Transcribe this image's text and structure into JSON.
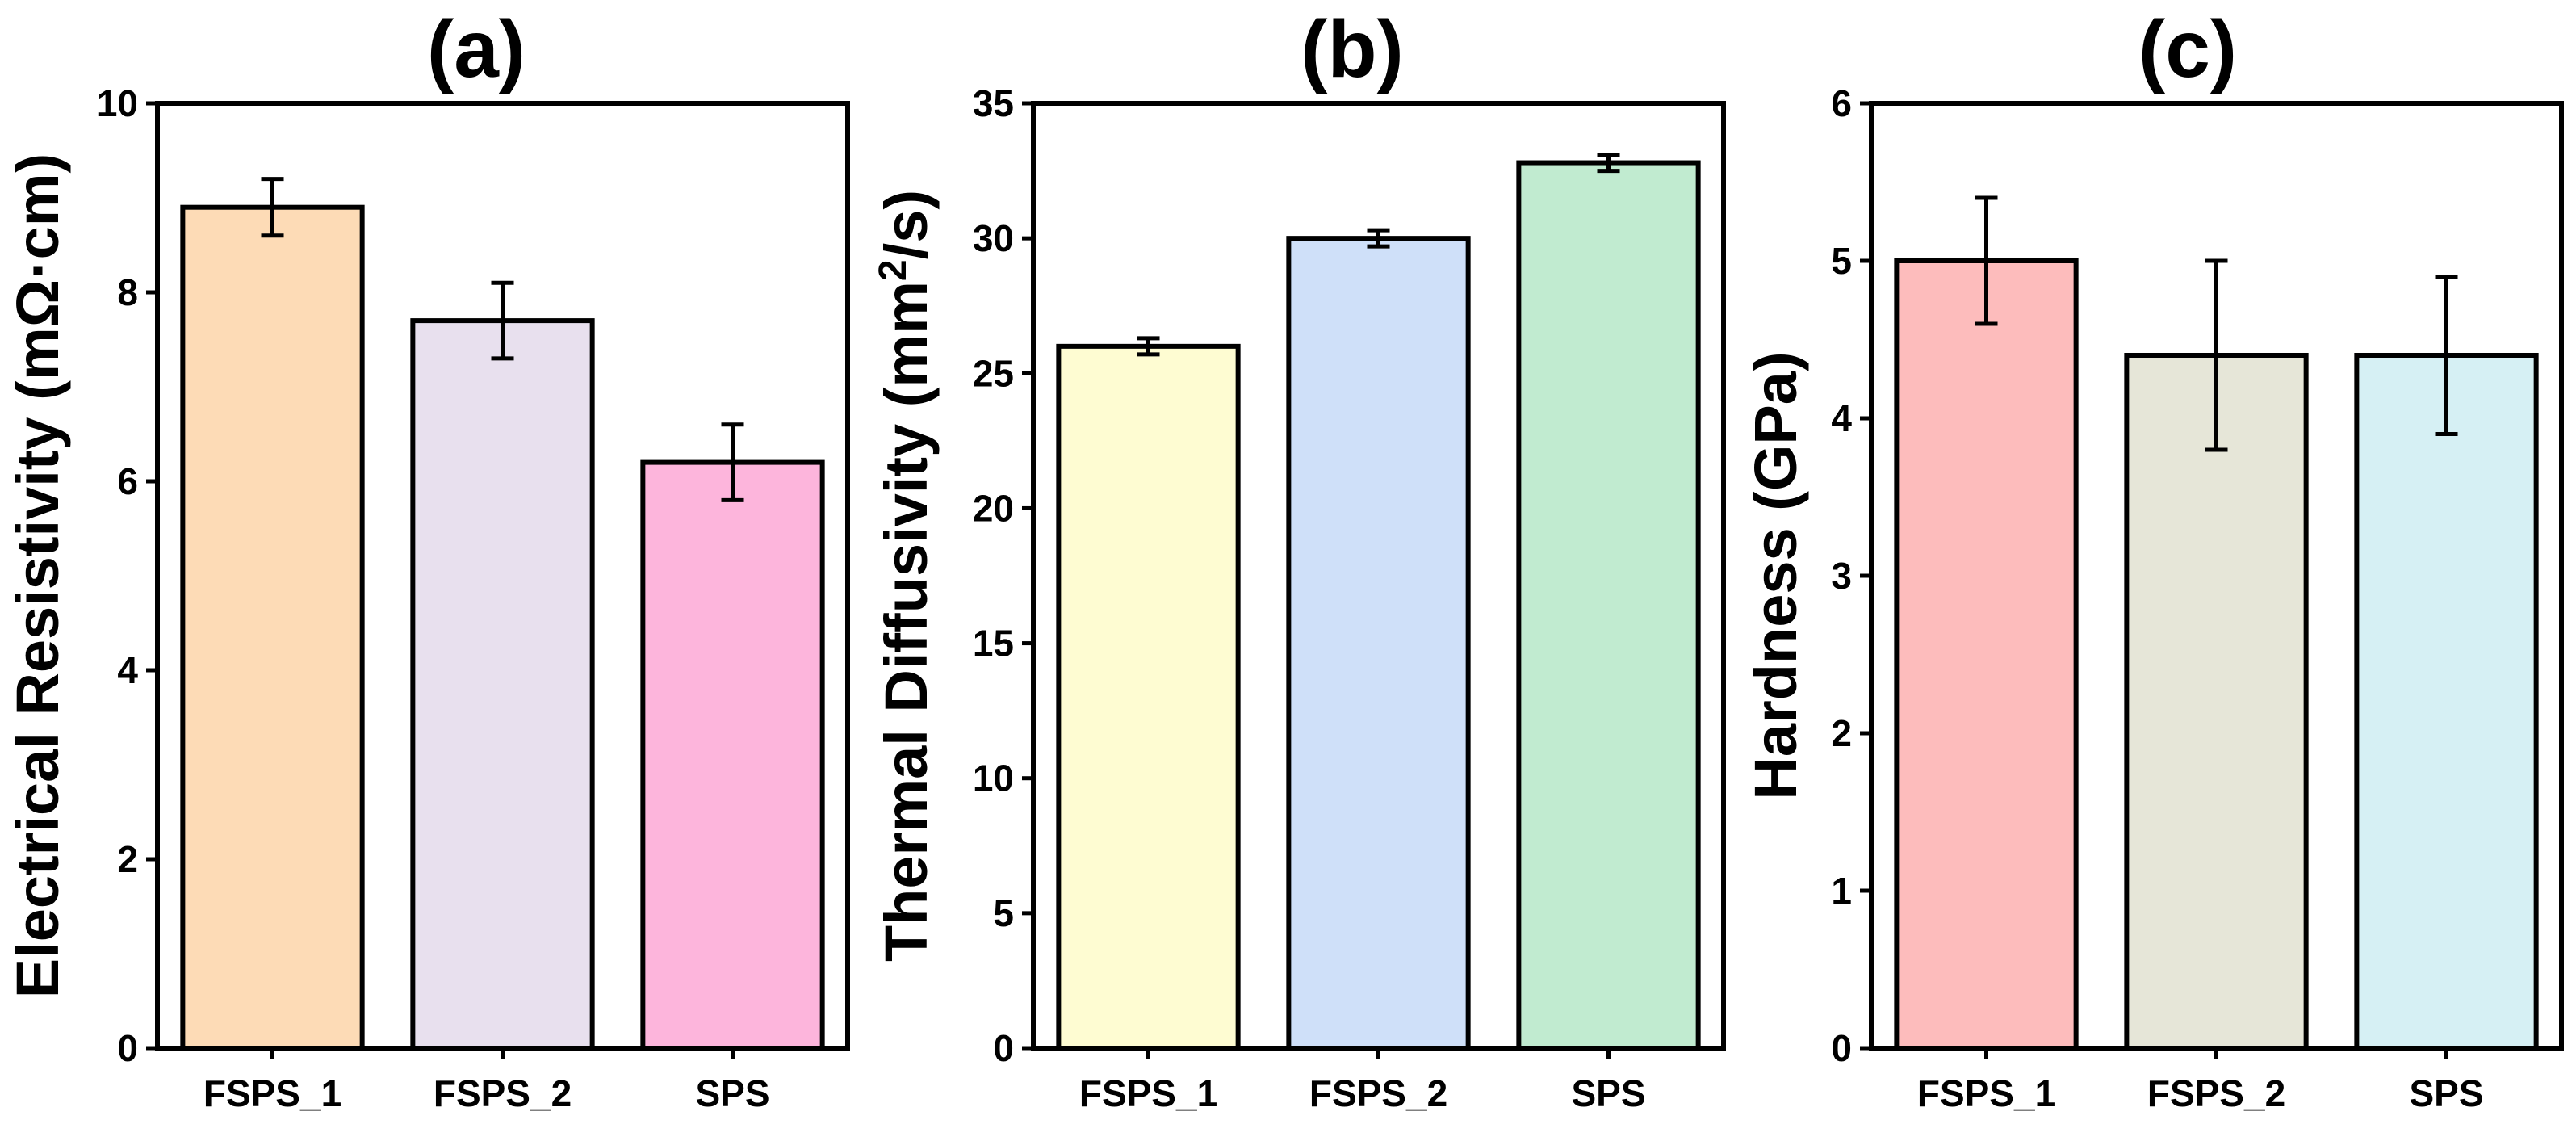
{
  "chart_data": [
    {
      "type": "bar",
      "title": "(a)",
      "xlabel": "",
      "ylabel": "Electrical Resistivity (mΩ·cm)",
      "ylabel_parts": [
        {
          "text": "Electrical Resistivity (mΩ·cm)",
          "sup": false
        }
      ],
      "ylim": [
        0,
        10
      ],
      "yticks": [
        0,
        2,
        4,
        6,
        8,
        10
      ],
      "categories": [
        "FSPS_1",
        "FSPS_2",
        "SPS"
      ],
      "values": [
        8.9,
        7.7,
        6.2
      ],
      "errors": [
        0.3,
        0.4,
        0.4
      ],
      "colors": [
        "#fddbb6",
        "#e8e0ee",
        "#fdb5dc"
      ]
    },
    {
      "type": "bar",
      "title": "(b)",
      "xlabel": "",
      "ylabel": "Thermal Diffusivity (mm²/s)",
      "ylabel_parts": [
        {
          "text": "Thermal Diffusivity (mm",
          "sup": false
        },
        {
          "text": "2",
          "sup": true
        },
        {
          "text": "/s)",
          "sup": false
        }
      ],
      "ylim": [
        0,
        35
      ],
      "yticks": [
        0,
        5,
        10,
        15,
        20,
        25,
        30,
        35
      ],
      "categories": [
        "FSPS_1",
        "FSPS_2",
        "SPS"
      ],
      "values": [
        26.0,
        30.0,
        32.8
      ],
      "errors": [
        0.3,
        0.3,
        0.3
      ],
      "colors": [
        "#fefcd2",
        "#cfe0f9",
        "#c1ebd0"
      ]
    },
    {
      "type": "bar",
      "title": "(c)",
      "xlabel": "",
      "ylabel": "Hardness (GPa)",
      "ylabel_parts": [
        {
          "text": "Hardness (GPa)",
          "sup": false
        }
      ],
      "ylim": [
        0,
        6
      ],
      "yticks": [
        0,
        1,
        2,
        3,
        4,
        5,
        6
      ],
      "categories": [
        "FSPS_1",
        "FSPS_2",
        "SPS"
      ],
      "values": [
        5.0,
        4.4,
        4.4
      ],
      "errors": [
        0.4,
        0.6,
        0.5
      ],
      "colors": [
        "#fdbcbc",
        "#e6e6d8",
        "#d6f0f4"
      ]
    }
  ]
}
